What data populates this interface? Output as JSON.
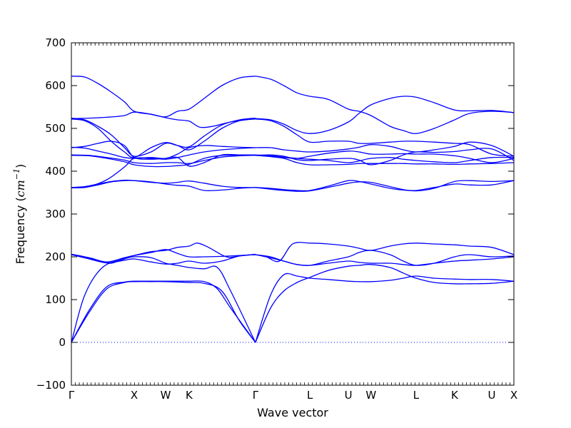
{
  "chart_data": {
    "type": "line",
    "title": "",
    "xlabel": "Wave vector",
    "ylabel_text": "Frequency (",
    "ylabel_unit": "cm",
    "ylabel_exp": "−1",
    "ylabel_close": ")",
    "ylim": [
      -100,
      700
    ],
    "yticks": [
      "−100",
      "0",
      "100",
      "200",
      "300",
      "400",
      "500",
      "600",
      "700"
    ],
    "ytick_values": [
      -100,
      0,
      100,
      200,
      300,
      400,
      500,
      600,
      700
    ],
    "xlim": [
      0,
      100
    ],
    "special_points": [
      {
        "label": "Γ",
        "x": 0
      },
      {
        "label": "X",
        "x": 14.2
      },
      {
        "label": "W",
        "x": 21.3
      },
      {
        "label": "K",
        "x": 26.6
      },
      {
        "label": "Γ",
        "x": 41.6
      },
      {
        "label": "L",
        "x": 53.9
      },
      {
        "label": "U",
        "x": 62.6
      },
      {
        "label": "W",
        "x": 67.7
      },
      {
        "label": "L",
        "x": 77.9
      },
      {
        "label": "K",
        "x": 86.6
      },
      {
        "label": "U",
        "x": 95.0
      },
      {
        "label": "X",
        "x": 100
      }
    ],
    "zero_line": 0,
    "colors": {
      "bands": "#0000ff",
      "zero": "#0000ff"
    },
    "grid": false,
    "series": [
      {
        "x": [
          0,
          4,
          8,
          12,
          14.2,
          18,
          21.3,
          24,
          26.6,
          30,
          34,
          38,
          41.6
        ],
        "values": [
          0,
          70,
          125,
          140,
          142,
          142,
          142,
          141,
          140,
          138,
          120,
          50,
          0
        ]
      },
      {
        "x": [
          0,
          4,
          8,
          12,
          14.2,
          18,
          21.3,
          24,
          26.6,
          30,
          33,
          36,
          41.6
        ],
        "values": [
          0,
          75,
          130,
          141,
          143,
          143,
          143,
          143,
          143,
          142,
          125,
          80,
          0
        ]
      },
      {
        "x": [
          0,
          3,
          7,
          12,
          14.2,
          18,
          21.3,
          24,
          26.6,
          30,
          33,
          36,
          41.6
        ],
        "values": [
          0,
          110,
          175,
          195,
          200,
          198,
          185,
          180,
          175,
          172,
          175,
          120,
          0
        ]
      },
      {
        "x": [
          0,
          3,
          6,
          9,
          12,
          14.2,
          18,
          21.3,
          24,
          26.6,
          28.5,
          31,
          35,
          38,
          41.6
        ],
        "values": [
          206,
          200,
          190,
          185,
          197,
          203,
          212,
          215,
          222,
          225,
          232,
          222,
          200,
          202,
          206
        ]
      },
      {
        "x": [
          0,
          4,
          8,
          12,
          14.2,
          18,
          21.3,
          24,
          26.6,
          30,
          34,
          38,
          41.6
        ],
        "values": [
          205,
          198,
          188,
          198,
          203,
          210,
          217,
          208,
          200,
          200,
          201,
          203,
          205
        ]
      },
      {
        "x": [
          0,
          4,
          8,
          12,
          14.2,
          18,
          21.3,
          24,
          26.6,
          30,
          34,
          38,
          41.6
        ],
        "values": [
          205,
          195,
          186,
          192,
          195,
          188,
          183,
          185,
          190,
          185,
          190,
          202,
          205
        ]
      },
      {
        "x": [
          41.6,
          45,
          48,
          51,
          53.9,
          58,
          62.6,
          65,
          67.7,
          72,
          75,
          77.9,
          82,
          86.6,
          90,
          95,
          100
        ],
        "values": [
          0,
          110,
          158,
          155,
          150,
          147,
          143,
          142,
          142,
          145,
          150,
          155,
          150,
          148,
          147,
          147,
          143
        ]
      },
      {
        "x": [
          41.6,
          45,
          48,
          51,
          53.9,
          58,
          62.6,
          65,
          67.7,
          72,
          75,
          77.9,
          82,
          86.6,
          90,
          95,
          100
        ],
        "values": [
          0,
          80,
          120,
          140,
          152,
          168,
          178,
          180,
          182,
          175,
          162,
          150,
          140,
          137,
          137,
          138,
          143
        ]
      },
      {
        "x": [
          41.6,
          44,
          48,
          51,
          53.9,
          58,
          62.6,
          65,
          67.7,
          72,
          75,
          77.9,
          82,
          86.6,
          90,
          95,
          100
        ],
        "values": [
          205,
          200,
          190,
          182,
          180,
          185,
          190,
          187,
          185,
          185,
          182,
          180,
          185,
          190,
          192,
          195,
          200
        ]
      },
      {
        "x": [
          41.6,
          45,
          48,
          51,
          53.9,
          58,
          62.6,
          65,
          67.7,
          72,
          75,
          77.9,
          82,
          86.6,
          90,
          95,
          100
        ],
        "values": [
          205,
          200,
          190,
          182,
          180,
          190,
          200,
          210,
          215,
          205,
          190,
          180,
          185,
          200,
          205,
          200,
          202
        ]
      },
      {
        "x": [
          41.6,
          44,
          47,
          50,
          53.9,
          58,
          62.6,
          65,
          67.7,
          72,
          75,
          77.9,
          82,
          86.6,
          90,
          95,
          100
        ],
        "values": [
          205,
          200,
          190,
          230,
          232,
          230,
          225,
          220,
          215,
          225,
          230,
          232,
          230,
          228,
          225,
          222,
          205
        ]
      },
      {
        "x": [
          0,
          3,
          6,
          9,
          12,
          14.2,
          18,
          21.3,
          24,
          26.6,
          30,
          34,
          38,
          41.6
        ],
        "values": [
          361,
          362,
          368,
          375,
          378,
          378,
          375,
          370,
          367,
          365,
          355,
          356,
          360,
          362
        ]
      },
      {
        "x": [
          0,
          3,
          6,
          9,
          12,
          14.2,
          18,
          21.3,
          24,
          26.6,
          30,
          34,
          38,
          41.6
        ],
        "values": [
          362,
          364,
          370,
          376,
          379,
          378,
          374,
          372,
          374,
          377,
          372,
          365,
          362,
          362
        ]
      },
      {
        "x": [
          41.6,
          45,
          48,
          51,
          53.9,
          58,
          62.6,
          65,
          67.7,
          72,
          75,
          77.9,
          82,
          86.6,
          90,
          95,
          100
        ],
        "values": [
          362,
          360,
          357,
          355,
          355,
          365,
          378,
          376,
          370,
          360,
          356,
          355,
          362,
          370,
          368,
          368,
          378
        ]
      },
      {
        "x": [
          41.6,
          45,
          48,
          51,
          53.9,
          58,
          62.6,
          65,
          67.7,
          72,
          75,
          77.9,
          82,
          86.6,
          90,
          95,
          100
        ],
        "values": [
          362,
          358,
          355,
          353,
          354,
          362,
          372,
          375,
          374,
          364,
          357,
          354,
          360,
          376,
          378,
          376,
          378
        ]
      },
      {
        "x": [
          0,
          4,
          8,
          12,
          14.2,
          18,
          21.3,
          24,
          26.6,
          30,
          34,
          38,
          41.6
        ],
        "values": [
          437,
          436,
          430,
          422,
          415,
          411,
          411,
          413,
          416,
          430,
          437,
          437,
          437
        ]
      },
      {
        "x": [
          0,
          4,
          8,
          12,
          14.2,
          18,
          21.3,
          24,
          26.6,
          30,
          34,
          38,
          41.6
        ],
        "values": [
          438,
          437,
          432,
          426,
          420,
          418,
          420,
          420,
          418,
          425,
          433,
          436,
          437
        ]
      },
      {
        "x": [
          0,
          4,
          8,
          12,
          14.2,
          18,
          21.3,
          24,
          26.6,
          30,
          34,
          38,
          41.6
        ],
        "values": [
          362,
          365,
          380,
          410,
          430,
          430,
          428,
          432,
          438,
          445,
          450,
          453,
          455
        ]
      },
      {
        "x": [
          0,
          3,
          6,
          9,
          12,
          14.2,
          18,
          21.3,
          24,
          26.6,
          30,
          34,
          38,
          41.6
        ],
        "values": [
          455,
          458,
          465,
          470,
          460,
          432,
          428,
          430,
          432,
          412,
          420,
          438,
          438,
          438
        ]
      },
      {
        "x": [
          0,
          3,
          6,
          9,
          12,
          14.2,
          18,
          21.3,
          24,
          26.6,
          30,
          34,
          38,
          41.6
        ],
        "values": [
          456,
          454,
          447,
          440,
          432,
          430,
          432,
          430,
          440,
          455,
          460,
          458,
          456,
          455
        ]
      },
      {
        "x": [
          0,
          3,
          6,
          9,
          12,
          14.2,
          18,
          21.3,
          24,
          26.6,
          30,
          34,
          38,
          41.6
        ],
        "values": [
          522,
          518,
          500,
          470,
          445,
          432,
          455,
          467,
          460,
          450,
          470,
          500,
          518,
          522
        ]
      },
      {
        "x": [
          0,
          3,
          6,
          9,
          12,
          14.2,
          18,
          21.3,
          24,
          26.6,
          30,
          34,
          38,
          41.6
        ],
        "values": [
          524,
          520,
          505,
          485,
          455,
          435,
          445,
          465,
          460,
          457,
          482,
          508,
          520,
          524
        ]
      },
      {
        "x": [
          0,
          4,
          8,
          12,
          14.2,
          18,
          21.3,
          24,
          26.6,
          29,
          32,
          36,
          41.6
        ],
        "values": [
          523,
          524,
          526,
          530,
          538,
          533,
          525,
          520,
          517,
          503,
          505,
          515,
          523
        ]
      },
      {
        "x": [
          0,
          3,
          6,
          9,
          12,
          14.2,
          18,
          21.3,
          24,
          26.6,
          30,
          34,
          38,
          41.6
        ],
        "values": [
          622,
          620,
          605,
          585,
          562,
          540,
          533,
          527,
          540,
          545,
          570,
          600,
          618,
          622
        ]
      },
      {
        "x": [
          41.6,
          45,
          48,
          51,
          53.9,
          58,
          62.6,
          65,
          67.7,
          72,
          75,
          77.9,
          82,
          86.6,
          90,
          95,
          100
        ],
        "values": [
          622,
          615,
          600,
          583,
          575,
          568,
          545,
          540,
          530,
          505,
          495,
          488,
          500,
          520,
          535,
          540,
          537
        ]
      },
      {
        "x": [
          41.6,
          45,
          48,
          51,
          53.9,
          58,
          62.6,
          65,
          67.7,
          72,
          75,
          77.9,
          82,
          86.6,
          90,
          95,
          100
        ],
        "values": [
          523,
          520,
          510,
          495,
          488,
          495,
          515,
          535,
          555,
          570,
          575,
          573,
          560,
          543,
          541,
          542,
          537
        ]
      },
      {
        "x": [
          41.6,
          45,
          48,
          51,
          53.9,
          58,
          62.6,
          65,
          67.7,
          72,
          75,
          77.9,
          82,
          86.6,
          90,
          95,
          100
        ],
        "values": [
          522,
          518,
          505,
          485,
          468,
          470,
          470,
          465,
          465,
          468,
          470,
          470,
          468,
          465,
          462,
          440,
          435
        ]
      },
      {
        "x": [
          41.6,
          45,
          48,
          51,
          53.9,
          58,
          62.6,
          65,
          67.7,
          72,
          75,
          77.9,
          82,
          86.6,
          90,
          95,
          100
        ],
        "values": [
          455,
          455,
          450,
          447,
          445,
          447,
          452,
          456,
          462,
          458,
          450,
          445,
          450,
          458,
          468,
          460,
          435
        ]
      },
      {
        "x": [
          41.6,
          45,
          48,
          51,
          53.9,
          58,
          62.6,
          65,
          67.7,
          72,
          75,
          77.9,
          82,
          86.6,
          90,
          95,
          100
        ],
        "values": [
          438,
          436,
          432,
          430,
          435,
          442,
          447,
          445,
          440,
          440,
          441,
          440,
          440,
          436,
          430,
          420,
          430
        ]
      },
      {
        "x": [
          41.6,
          45,
          48,
          51,
          53.9,
          58,
          62.6,
          65,
          67.7,
          72,
          75,
          77.9,
          82,
          86.6,
          90,
          95,
          100
        ],
        "values": [
          437,
          436,
          433,
          430,
          428,
          425,
          420,
          424,
          430,
          432,
          428,
          425,
          422,
          420,
          425,
          432,
          432
        ]
      },
      {
        "x": [
          41.6,
          45,
          48,
          51,
          53.9,
          58,
          62.6,
          65,
          67.7,
          72,
          75,
          77.9,
          82,
          86.6,
          90,
          95,
          100
        ],
        "values": [
          437,
          434,
          430,
          420,
          415,
          415,
          416,
          418,
          418,
          418,
          418,
          417,
          417,
          416,
          417,
          418,
          420
        ]
      },
      {
        "x": [
          41.6,
          45,
          48,
          51,
          53.9,
          58,
          62.6,
          65,
          67.7,
          72,
          75,
          77.9,
          82,
          86.6,
          90,
          95,
          100
        ],
        "values": [
          437,
          438,
          435,
          427,
          425,
          428,
          430,
          426,
          415,
          425,
          438,
          445,
          444,
          446,
          450,
          452,
          425
        ]
      }
    ]
  }
}
